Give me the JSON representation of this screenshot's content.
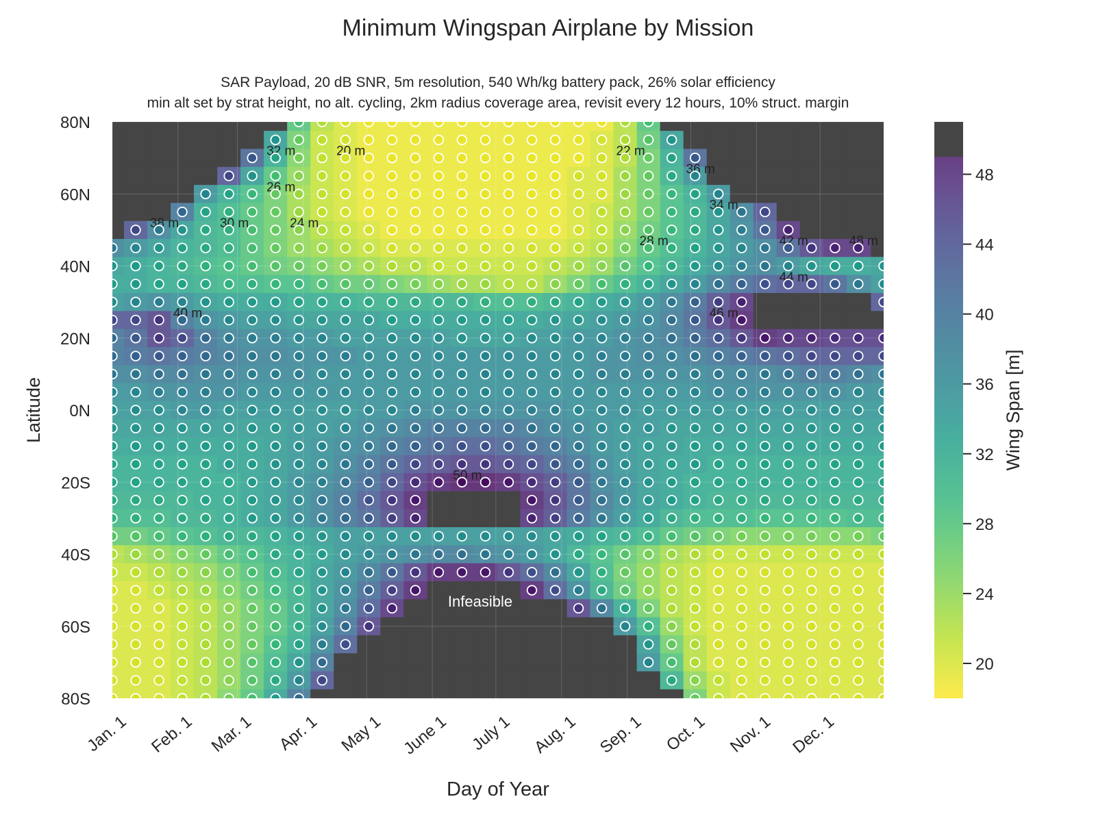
{
  "chart_data": {
    "type": "heatmap",
    "title": "Minimum Wingspan Airplane by Mission",
    "subtitle_lines": [
      "SAR Payload, 20 dB SNR, 5m resolution, 540 Wh/kg battery pack, 26% solar efficiency",
      "min alt set by strat height, no alt. cycling, 2km radius coverage area, revisit every 12 hours, 10% struct. margin"
    ],
    "xlabel": "Day of Year",
    "ylabel": "Latitude",
    "x_tick_labels": [
      "Jan. 1",
      "Feb. 1",
      "Mar. 1",
      "Apr. 1",
      "May 1",
      "June 1",
      "July 1",
      "Aug. 1",
      "Sep. 1",
      "Oct. 1",
      "Nov. 1",
      "Dec. 1"
    ],
    "x_tick_days": [
      1,
      32,
      60,
      91,
      121,
      152,
      182,
      213,
      244,
      274,
      305,
      335
    ],
    "xlim": [
      1,
      365
    ],
    "y_ticks": [
      80,
      60,
      40,
      20,
      0,
      -20,
      -40,
      -60,
      -80
    ],
    "y_tick_labels": [
      "80N",
      "60N",
      "40N",
      "20N",
      "0N",
      "20S",
      "40S",
      "60S",
      "80S"
    ],
    "ylim": [
      -80,
      80
    ],
    "colorbar": {
      "label": "Wing Span [m]",
      "ticks": [
        20,
        24,
        28,
        32,
        36,
        40,
        44,
        48
      ],
      "range": [
        18,
        51
      ],
      "colormap": "viridis_r",
      "infeasible_color": "#454545"
    },
    "annotation": "Infeasible",
    "contour_labels": [
      "20 m",
      "22 m",
      "24 m",
      "26 m",
      "28 m",
      "30 m",
      "32 m",
      "34 m",
      "36 m",
      "38 m",
      "40 m",
      "42 m",
      "44 m",
      "46 m",
      "48 m",
      "50 m"
    ],
    "grid": true,
    "legend": "none",
    "samples": {
      "latitudes": [
        80,
        75,
        70,
        65,
        60,
        55,
        50,
        45,
        40,
        35,
        30,
        25,
        20,
        15,
        10,
        5,
        0,
        -5,
        -10,
        -15,
        -20,
        -25,
        -30,
        -35,
        -40,
        -45,
        -50,
        -55,
        -60,
        -65,
        -70,
        -75,
        -80
      ],
      "days": [
        1,
        12,
        23,
        34,
        45,
        56,
        67,
        78,
        89,
        100,
        111,
        122,
        133,
        144,
        155,
        166,
        177,
        188,
        199,
        210,
        221,
        232,
        243,
        254,
        265,
        276,
        287,
        298,
        309,
        320,
        331,
        342,
        353,
        365
      ],
      "wingspan_m": [
        [
          null,
          null,
          null,
          null,
          null,
          null,
          null,
          null,
          28,
          22,
          20,
          19,
          19,
          19,
          19,
          19,
          19,
          19,
          19,
          19,
          19,
          19,
          22,
          28,
          null,
          null,
          null,
          null,
          null,
          null,
          null,
          null,
          null,
          null
        ],
        [
          null,
          null,
          null,
          null,
          null,
          null,
          null,
          34,
          26,
          21,
          20,
          19,
          19,
          19,
          19,
          19,
          19,
          19,
          19,
          19,
          19,
          20,
          22,
          27,
          34,
          null,
          null,
          null,
          null,
          null,
          null,
          null,
          null,
          null
        ],
        [
          null,
          null,
          null,
          null,
          null,
          null,
          42,
          32,
          25,
          21,
          20,
          19,
          19,
          19,
          19,
          19,
          19,
          19,
          19,
          19,
          19,
          20,
          22,
          26,
          32,
          42,
          null,
          null,
          null,
          null,
          null,
          null,
          null,
          null
        ],
        [
          null,
          null,
          null,
          null,
          null,
          44,
          34,
          28,
          24,
          21,
          20,
          19,
          19,
          19,
          19,
          19,
          19,
          19,
          19,
          19,
          20,
          20,
          23,
          26,
          31,
          36,
          null,
          null,
          null,
          null,
          null,
          null,
          null,
          null
        ],
        [
          null,
          null,
          null,
          null,
          36,
          32,
          29,
          26,
          23,
          21,
          20,
          19,
          19,
          19,
          19,
          19,
          19,
          19,
          19,
          19,
          20,
          20,
          23,
          26,
          29,
          32,
          36,
          null,
          null,
          null,
          null,
          null,
          null,
          null
        ],
        [
          null,
          null,
          null,
          40,
          32,
          30,
          28,
          26,
          23,
          21,
          20,
          19,
          19,
          19,
          19,
          19,
          19,
          19,
          19,
          19,
          20,
          21,
          23,
          26,
          29,
          31,
          34,
          38,
          44,
          null,
          null,
          null,
          null,
          null
        ],
        [
          null,
          44,
          38,
          34,
          31,
          30,
          28,
          26,
          24,
          22,
          21,
          20,
          19,
          19,
          19,
          19,
          19,
          19,
          19,
          19,
          20,
          21,
          24,
          27,
          29,
          31,
          34,
          37,
          42,
          48,
          null,
          null,
          null,
          null
        ],
        [
          38,
          36,
          34,
          32,
          31,
          30,
          28,
          26,
          24,
          23,
          22,
          21,
          20,
          20,
          20,
          20,
          20,
          20,
          20,
          20,
          21,
          22,
          25,
          28,
          30,
          32,
          34,
          36,
          38,
          42,
          46,
          48,
          48,
          null
        ],
        [
          34,
          33,
          32,
          31,
          30,
          29,
          28,
          27,
          26,
          25,
          24,
          23,
          22,
          22,
          21,
          21,
          21,
          21,
          21,
          22,
          23,
          24,
          27,
          29,
          31,
          33,
          35,
          37,
          38,
          36,
          34,
          33,
          33,
          34
        ],
        [
          33,
          33,
          32,
          32,
          31,
          30,
          30,
          29,
          29,
          28,
          27,
          27,
          26,
          25,
          24,
          23,
          23,
          22,
          22,
          24,
          26,
          28,
          30,
          32,
          34,
          36,
          39,
          41,
          43,
          44,
          44,
          42,
          38,
          35
        ],
        [
          35,
          36,
          37,
          36,
          34,
          33,
          33,
          33,
          32,
          32,
          32,
          31,
          31,
          31,
          31,
          31,
          30,
          30,
          30,
          31,
          32,
          33,
          34,
          36,
          38,
          41,
          45,
          48,
          null,
          null,
          null,
          null,
          null,
          44
        ],
        [
          44,
          44,
          46,
          40,
          37,
          36,
          35,
          35,
          34,
          34,
          34,
          34,
          33,
          33,
          33,
          33,
          33,
          33,
          33,
          34,
          34,
          35,
          36,
          37,
          39,
          42,
          46,
          49,
          null,
          null,
          null,
          null,
          null,
          null
        ],
        [
          40,
          42,
          46,
          44,
          40,
          38,
          37,
          37,
          36,
          36,
          35,
          35,
          35,
          35,
          35,
          34,
          34,
          34,
          35,
          35,
          36,
          36,
          37,
          38,
          39,
          41,
          43,
          46,
          49,
          48,
          48,
          47,
          47,
          47
        ],
        [
          40,
          41,
          42,
          41,
          40,
          39,
          38,
          38,
          37,
          37,
          37,
          36,
          36,
          36,
          36,
          36,
          36,
          36,
          36,
          36,
          36,
          37,
          37,
          38,
          38,
          39,
          40,
          41,
          42,
          43,
          44,
          44,
          44,
          44
        ],
        [
          38,
          38,
          39,
          39,
          38,
          38,
          37,
          37,
          37,
          36,
          36,
          36,
          36,
          36,
          36,
          36,
          36,
          36,
          36,
          36,
          36,
          37,
          37,
          37,
          37,
          37,
          38,
          38,
          38,
          39,
          40,
          40,
          39,
          38
        ],
        [
          36,
          36,
          37,
          37,
          37,
          37,
          36,
          36,
          36,
          36,
          36,
          36,
          36,
          36,
          36,
          36,
          36,
          36,
          36,
          36,
          36,
          36,
          36,
          36,
          36,
          36,
          37,
          37,
          37,
          37,
          37,
          37,
          36,
          36
        ],
        [
          35,
          35,
          35,
          36,
          36,
          35,
          35,
          35,
          35,
          35,
          35,
          36,
          36,
          37,
          37,
          37,
          37,
          37,
          37,
          37,
          36,
          36,
          36,
          35,
          35,
          35,
          35,
          35,
          35,
          35,
          35,
          35,
          35,
          35
        ],
        [
          34,
          34,
          34,
          34,
          34,
          34,
          34,
          34,
          35,
          35,
          36,
          37,
          38,
          39,
          40,
          40,
          40,
          40,
          39,
          38,
          37,
          36,
          35,
          35,
          34,
          34,
          34,
          34,
          34,
          34,
          34,
          34,
          34,
          34
        ],
        [
          33,
          33,
          33,
          33,
          33,
          33,
          33,
          34,
          35,
          36,
          37,
          38,
          40,
          41,
          42,
          43,
          43,
          42,
          41,
          40,
          38,
          36,
          35,
          34,
          34,
          33,
          33,
          33,
          33,
          33,
          33,
          33,
          33,
          33
        ],
        [
          32,
          32,
          32,
          32,
          32,
          33,
          33,
          34,
          35,
          36,
          38,
          40,
          42,
          44,
          45,
          46,
          46,
          45,
          44,
          42,
          40,
          37,
          35,
          34,
          33,
          33,
          32,
          32,
          32,
          32,
          32,
          32,
          32,
          32
        ],
        [
          32,
          32,
          32,
          32,
          32,
          32,
          33,
          34,
          36,
          37,
          39,
          41,
          44,
          47,
          49,
          50,
          50,
          49,
          47,
          45,
          42,
          38,
          36,
          34,
          33,
          32,
          32,
          32,
          32,
          32,
          32,
          32,
          32,
          32
        ],
        [
          31,
          31,
          31,
          31,
          32,
          32,
          33,
          34,
          36,
          38,
          40,
          43,
          46,
          49,
          null,
          null,
          null,
          null,
          49,
          46,
          42,
          39,
          36,
          34,
          33,
          32,
          31,
          31,
          31,
          31,
          31,
          31,
          31,
          31
        ],
        [
          30,
          30,
          30,
          31,
          31,
          32,
          33,
          34,
          36,
          38,
          40,
          42,
          45,
          48,
          null,
          null,
          null,
          null,
          48,
          45,
          41,
          38,
          35,
          33,
          31,
          30,
          30,
          30,
          29,
          29,
          29,
          29,
          30,
          30
        ],
        [
          27,
          27,
          28,
          29,
          30,
          31,
          31,
          32,
          33,
          34,
          35,
          35,
          35,
          35,
          35,
          35,
          35,
          35,
          35,
          34,
          33,
          32,
          31,
          30,
          28,
          27,
          26,
          25,
          25,
          25,
          25,
          25,
          25,
          26
        ],
        [
          22,
          23,
          24,
          25,
          26,
          28,
          29,
          31,
          32,
          33,
          35,
          36,
          37,
          38,
          39,
          39,
          38,
          37,
          36,
          34,
          31,
          29,
          27,
          25,
          23,
          22,
          21,
          21,
          21,
          21,
          21,
          21,
          21,
          21
        ],
        [
          21,
          21,
          22,
          23,
          24,
          26,
          28,
          30,
          32,
          34,
          36,
          39,
          42,
          46,
          49,
          49,
          49,
          46,
          43,
          39,
          34,
          30,
          26,
          24,
          22,
          21,
          20,
          20,
          20,
          20,
          20,
          20,
          20,
          20
        ],
        [
          20,
          20,
          21,
          22,
          23,
          25,
          27,
          29,
          31,
          34,
          37,
          41,
          45,
          49,
          null,
          null,
          null,
          null,
          49,
          43,
          37,
          31,
          27,
          24,
          22,
          21,
          20,
          20,
          20,
          20,
          20,
          20,
          20,
          20
        ],
        [
          20,
          20,
          20,
          21,
          22,
          24,
          26,
          28,
          31,
          34,
          38,
          43,
          48,
          null,
          null,
          null,
          null,
          null,
          null,
          null,
          46,
          39,
          32,
          26,
          22,
          21,
          20,
          20,
          20,
          20,
          20,
          20,
          20,
          20
        ],
        [
          20,
          20,
          20,
          21,
          22,
          24,
          26,
          28,
          31,
          35,
          40,
          46,
          null,
          null,
          null,
          null,
          null,
          null,
          null,
          null,
          null,
          null,
          36,
          30,
          24,
          21,
          20,
          20,
          20,
          20,
          20,
          20,
          20,
          20
        ],
        [
          20,
          20,
          20,
          21,
          22,
          24,
          26,
          29,
          32,
          37,
          43,
          null,
          null,
          null,
          null,
          null,
          null,
          null,
          null,
          null,
          null,
          null,
          null,
          34,
          26,
          22,
          20,
          20,
          20,
          20,
          20,
          20,
          20,
          20
        ],
        [
          20,
          20,
          20,
          21,
          22,
          24,
          27,
          30,
          34,
          40,
          null,
          null,
          null,
          null,
          null,
          null,
          null,
          null,
          null,
          null,
          null,
          null,
          null,
          36,
          28,
          22,
          20,
          20,
          20,
          20,
          20,
          20,
          20,
          20
        ],
        [
          20,
          20,
          20,
          21,
          22,
          24,
          27,
          31,
          36,
          44,
          null,
          null,
          null,
          null,
          null,
          null,
          null,
          null,
          null,
          null,
          null,
          null,
          null,
          null,
          31,
          24,
          21,
          20,
          20,
          20,
          20,
          20,
          20,
          20
        ],
        [
          20,
          20,
          20,
          21,
          22,
          25,
          28,
          33,
          40,
          null,
          null,
          null,
          null,
          null,
          null,
          null,
          null,
          null,
          null,
          null,
          null,
          null,
          null,
          null,
          null,
          26,
          21,
          20,
          20,
          20,
          20,
          20,
          20,
          20
        ]
      ]
    }
  }
}
